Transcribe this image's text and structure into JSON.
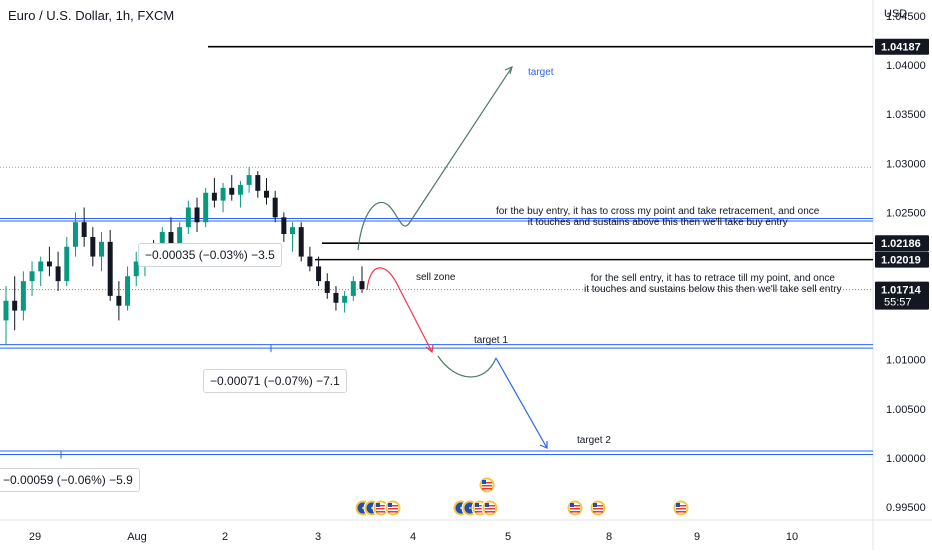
{
  "header": {
    "title": "Euro / U.S. Dollar, 1h, FXCM",
    "unit": "USD"
  },
  "chart_data": {
    "type": "candlestick",
    "title": "Euro / U.S. Dollar, 1h, FXCM",
    "ylabel": "USD",
    "ylim": [
      0.9935,
      1.0468
    ],
    "y_ticks": [
      "1.04500",
      "1.04000",
      "1.03500",
      "1.03000",
      "1.02500",
      "1.01000",
      "1.00500",
      "1.00000",
      "0.99500"
    ],
    "x_ticks": [
      "29",
      "Aug",
      "2",
      "3",
      "4",
      "5",
      "8",
      "9",
      "10"
    ],
    "price_labels": [
      {
        "text": "1.04187",
        "value": 1.04187,
        "style": "dark"
      },
      {
        "text": "1.02186",
        "value": 1.02186,
        "style": "dark"
      },
      {
        "text": "1.02019",
        "value": 1.02019,
        "style": "dark"
      },
      {
        "text": "1.01714",
        "value": 1.01714,
        "style": "dark",
        "sub": "55:57"
      }
    ],
    "current_price": 1.01714,
    "horizontal_lines": [
      {
        "value": 1.04187,
        "color": "#000000"
      },
      {
        "value": 1.02186,
        "color": "#000000"
      },
      {
        "value": 1.02019,
        "color": "#000000"
      },
      {
        "value": 1.02438,
        "color": "#2962ff"
      },
      {
        "value": 1.02412,
        "color": "#2962ff"
      },
      {
        "value": 1.01153,
        "color": "#2962ff"
      },
      {
        "value": 1.01118,
        "color": "#2962ff"
      },
      {
        "value": 1.0007,
        "color": "#2962ff"
      },
      {
        "value": 1.00035,
        "color": "#2962ff"
      },
      {
        "value": 1.0296,
        "color": "#9598a1",
        "dotted": true
      },
      {
        "value": 1.01714,
        "color": "#ef5350",
        "dotted": true
      }
    ],
    "candles": [
      {
        "o": 1.014,
        "h": 1.0175,
        "l": 1.0115,
        "c": 1.016
      },
      {
        "o": 1.016,
        "h": 1.0185,
        "l": 1.013,
        "c": 1.015
      },
      {
        "o": 1.015,
        "h": 1.019,
        "l": 1.014,
        "c": 1.018
      },
      {
        "o": 1.018,
        "h": 1.02,
        "l": 1.0165,
        "c": 1.019
      },
      {
        "o": 1.019,
        "h": 1.0205,
        "l": 1.0175,
        "c": 1.02
      },
      {
        "o": 1.02,
        "h": 1.0215,
        "l": 1.0185,
        "c": 1.0195
      },
      {
        "o": 1.0195,
        "h": 1.021,
        "l": 1.017,
        "c": 1.018
      },
      {
        "o": 1.018,
        "h": 1.0225,
        "l": 1.0175,
        "c": 1.0215
      },
      {
        "o": 1.0215,
        "h": 1.025,
        "l": 1.0205,
        "c": 1.024
      },
      {
        "o": 1.024,
        "h": 1.0255,
        "l": 1.0215,
        "c": 1.0225
      },
      {
        "o": 1.0225,
        "h": 1.0235,
        "l": 1.0195,
        "c": 1.0205
      },
      {
        "o": 1.0205,
        "h": 1.023,
        "l": 1.019,
        "c": 1.022
      },
      {
        "o": 1.022,
        "h": 1.0232,
        "l": 1.016,
        "c": 1.0165
      },
      {
        "o": 1.0165,
        "h": 1.018,
        "l": 1.014,
        "c": 1.0155
      },
      {
        "o": 1.0155,
        "h": 1.0195,
        "l": 1.015,
        "c": 1.0185
      },
      {
        "o": 1.0185,
        "h": 1.021,
        "l": 1.0175,
        "c": 1.02
      },
      {
        "o": 1.02,
        "h": 1.0215,
        "l": 1.0185,
        "c": 1.021
      },
      {
        "o": 1.021,
        "h": 1.0222,
        "l": 1.0195,
        "c": 1.0205
      },
      {
        "o": 1.0205,
        "h": 1.0235,
        "l": 1.02,
        "c": 1.023
      },
      {
        "o": 1.023,
        "h": 1.0245,
        "l": 1.021,
        "c": 1.0215
      },
      {
        "o": 1.0215,
        "h": 1.024,
        "l": 1.021,
        "c": 1.0235
      },
      {
        "o": 1.0235,
        "h": 1.0262,
        "l": 1.0228,
        "c": 1.0255
      },
      {
        "o": 1.0255,
        "h": 1.0265,
        "l": 1.023,
        "c": 1.024
      },
      {
        "o": 1.024,
        "h": 1.0275,
        "l": 1.0235,
        "c": 1.027
      },
      {
        "o": 1.027,
        "h": 1.0285,
        "l": 1.0255,
        "c": 1.0262
      },
      {
        "o": 1.0262,
        "h": 1.028,
        "l": 1.025,
        "c": 1.0275
      },
      {
        "o": 1.0275,
        "h": 1.0288,
        "l": 1.0262,
        "c": 1.0268
      },
      {
        "o": 1.0268,
        "h": 1.0282,
        "l": 1.0255,
        "c": 1.0278
      },
      {
        "o": 1.0278,
        "h": 1.0296,
        "l": 1.027,
        "c": 1.0288
      },
      {
        "o": 1.0288,
        "h": 1.0292,
        "l": 1.0265,
        "c": 1.0272
      },
      {
        "o": 1.0272,
        "h": 1.0285,
        "l": 1.0258,
        "c": 1.0265
      },
      {
        "o": 1.0265,
        "h": 1.0272,
        "l": 1.024,
        "c": 1.0245
      },
      {
        "o": 1.0245,
        "h": 1.025,
        "l": 1.022,
        "c": 1.0228
      },
      {
        "o": 1.0228,
        "h": 1.024,
        "l": 1.021,
        "c": 1.0235
      },
      {
        "o": 1.0235,
        "h": 1.024,
        "l": 1.02,
        "c": 1.0205
      },
      {
        "o": 1.0205,
        "h": 1.0215,
        "l": 1.019,
        "c": 1.0195
      },
      {
        "o": 1.0195,
        "h": 1.0205,
        "l": 1.0175,
        "c": 1.018
      },
      {
        "o": 1.018,
        "h": 1.0188,
        "l": 1.0162,
        "c": 1.0168
      },
      {
        "o": 1.0168,
        "h": 1.0175,
        "l": 1.015,
        "c": 1.0158
      },
      {
        "o": 1.0158,
        "h": 1.017,
        "l": 1.0148,
        "c": 1.0165
      },
      {
        "o": 1.0165,
        "h": 1.0185,
        "l": 1.016,
        "c": 1.018
      },
      {
        "o": 1.018,
        "h": 1.0195,
        "l": 1.0168,
        "c": 1.0172
      }
    ]
  },
  "pnl_boxes": [
    {
      "text": "−0.00035 (−0.03%) −3.5"
    },
    {
      "text": "−0.00071 (−0.07%) −7.1"
    },
    {
      "text": "−0.00059 (−0.06%) −5.9"
    }
  ],
  "annotations": {
    "buy_note": "for the buy  entry, it has to cross   my point and take retracement, and once\nit touches and sustains above  this then we'll take buy  entry",
    "sell_note": "for the sell entry, it has to retrace till my point, and once\nit touches and sustains below this then we'll take sell entry",
    "target": "target",
    "target1": "target 1",
    "target2": "target 2",
    "sell_zone": "sell zone"
  },
  "colors": {
    "up": "#089981",
    "down": "#131722",
    "blue_line": "#2962ff",
    "buy_path": "#4f7a65",
    "sell_arrow": "#f23645",
    "label_dark": "#131722"
  },
  "event_icons": [
    "eu-flag-icon",
    "us-flag-icon"
  ]
}
